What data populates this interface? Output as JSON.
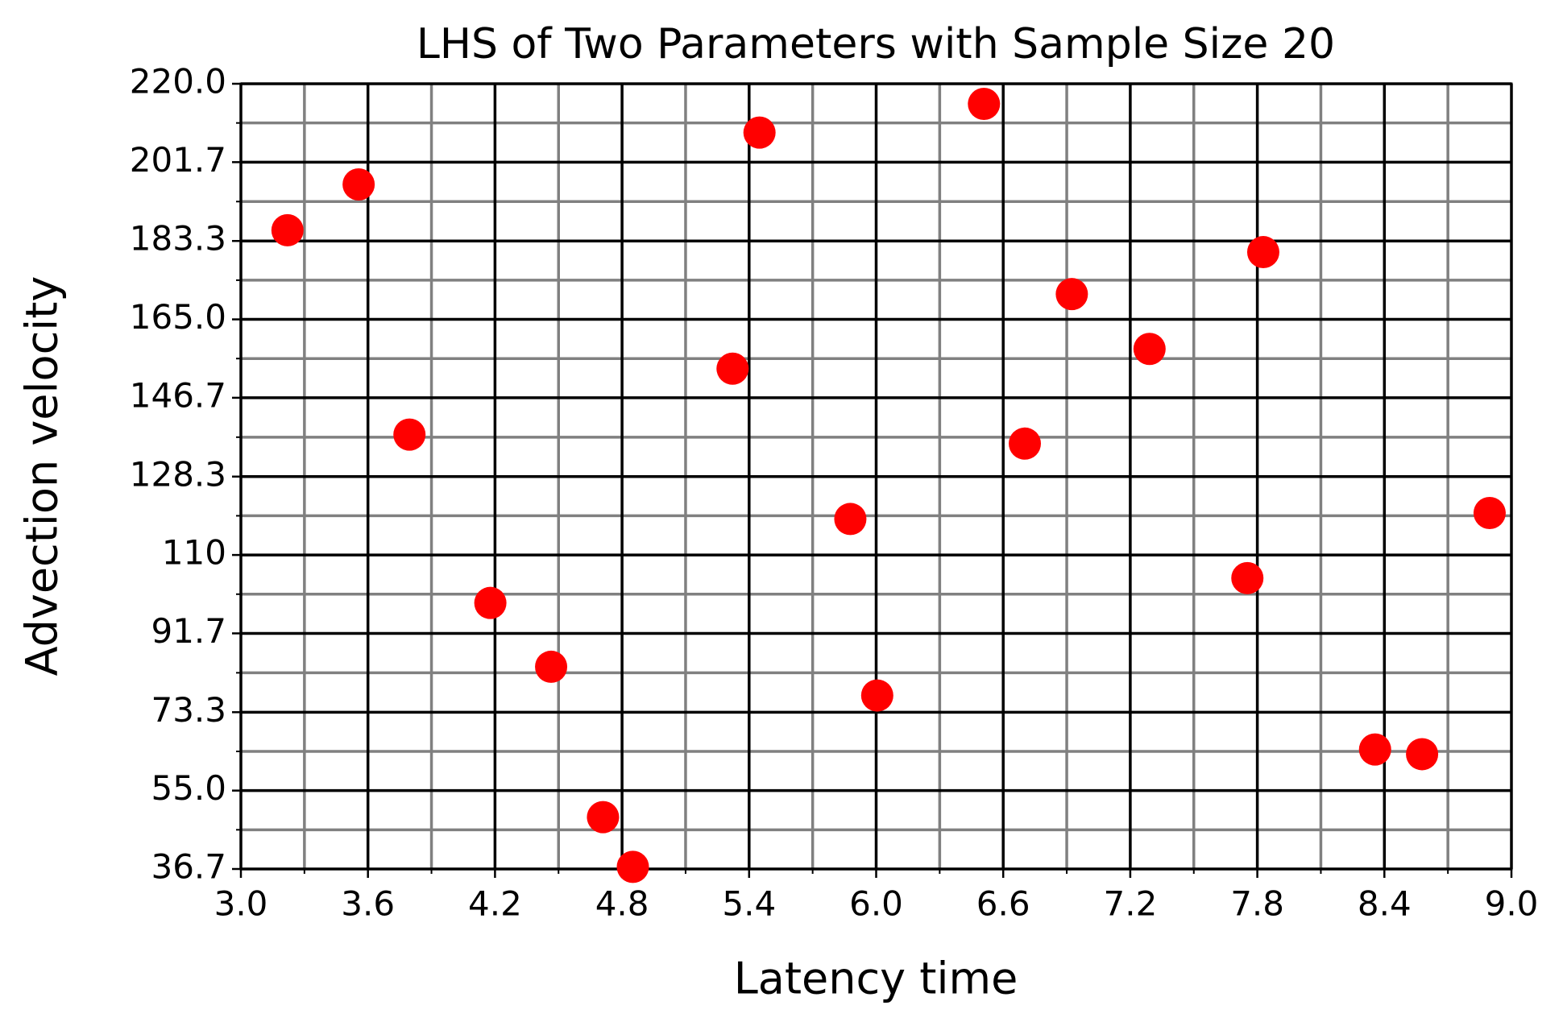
{
  "chart_data": {
    "type": "scatter",
    "title": "LHS of Two Parameters with Sample Size 20",
    "x_label": "Latency time",
    "y_label": "Advection velocity",
    "color": "#ff0000",
    "grid": true,
    "x": [
      3.22,
      3.556,
      3.796,
      4.178,
      4.465,
      4.71,
      4.851,
      5.322,
      5.449,
      5.878,
      6.005,
      6.509,
      6.702,
      6.924,
      7.291,
      7.828,
      7.753,
      8.356,
      8.578,
      8.897
    ],
    "values": [
      185.8,
      196.5,
      138.1,
      98.8,
      83.9,
      48.8,
      37.2,
      153.5,
      208.6,
      118.4,
      77.2,
      215.3,
      136.0,
      170.9,
      158.1,
      180.7,
      104.6,
      64.6,
      63.5,
      119.8
    ],
    "xlim": [
      3.0,
      9.0
    ],
    "ylim": [
      36.7,
      220.0
    ],
    "xticks": [
      {
        "value": 3.0,
        "label": "3.0"
      },
      3.6,
      4.2,
      4.8,
      5.4,
      {
        "value": 6.0,
        "label": "6.0"
      },
      6.6,
      7.2,
      7.8,
      8.4,
      {
        "value": 9.0,
        "label": "9.0"
      }
    ],
    "yticks": [
      36.7,
      {
        "value": 55.0,
        "label": "55.0"
      },
      73.3,
      91.7,
      110.0,
      128.3,
      146.7,
      {
        "value": 165.0,
        "label": "165.0"
      },
      183.3,
      201.7,
      {
        "value": 220.0,
        "label": "220.0"
      }
    ],
    "minor_xticks": [
      3.3,
      3.9,
      4.5,
      5.1,
      5.7,
      6.3,
      6.9,
      7.5,
      8.1,
      8.7
    ],
    "minor_yticks": [
      45.85,
      64.15,
      82.5,
      100.85,
      119.15,
      137.5,
      155.85,
      174.15,
      192.5,
      210.85
    ]
  }
}
